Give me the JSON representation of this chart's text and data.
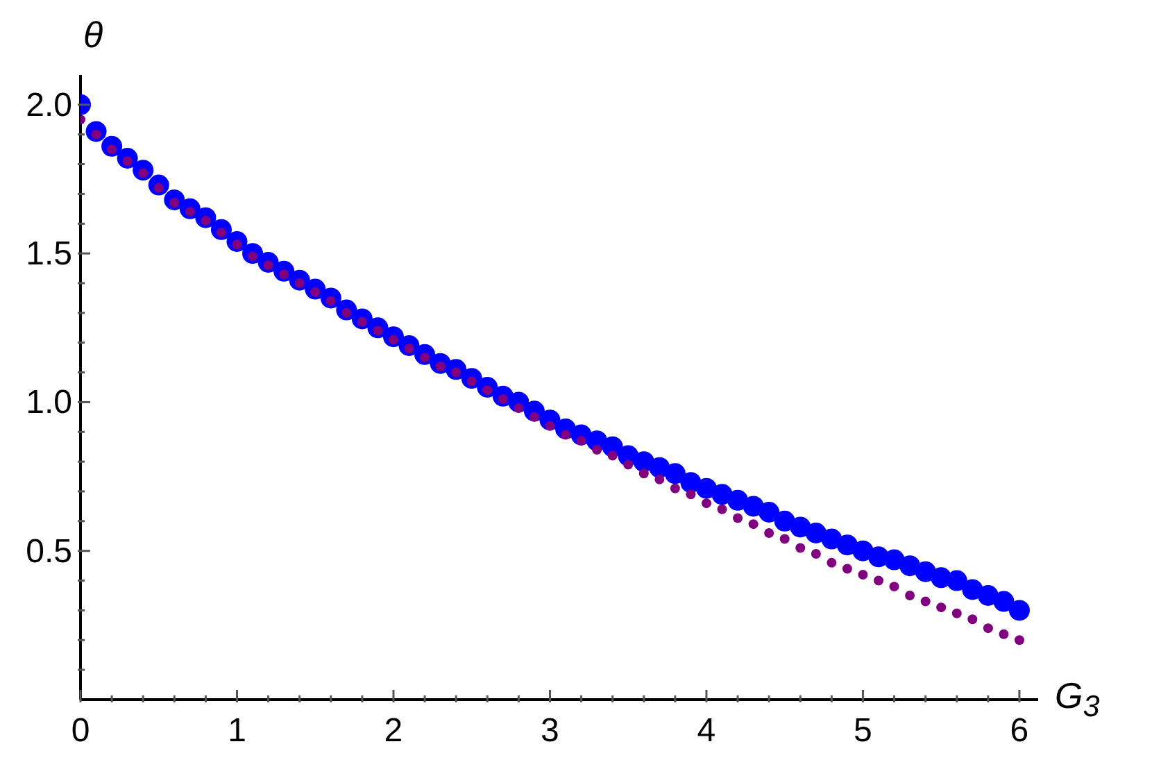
{
  "chart_data": {
    "type": "scatter",
    "xlabel": "G$_{3}$",
    "ylabel": "θ",
    "x": [
      0,
      0.1,
      0.2,
      0.3,
      0.4,
      0.5,
      0.6,
      0.7,
      0.8,
      0.9,
      1.0,
      1.1,
      1.2,
      1.3,
      1.4,
      1.5,
      1.6,
      1.7,
      1.8,
      1.9,
      2.0,
      2.1,
      2.2,
      2.3,
      2.4,
      2.5,
      2.6,
      2.7,
      2.8,
      2.9,
      3.0,
      3.1,
      3.2,
      3.3,
      3.4,
      3.5,
      3.6,
      3.7,
      3.8,
      3.9,
      4.0,
      4.1,
      4.2,
      4.3,
      4.4,
      4.5,
      4.6,
      4.7,
      4.8,
      4.9,
      5.0,
      5.1,
      5.2,
      5.3,
      5.4,
      5.5,
      5.6,
      5.7,
      5.8,
      5.9,
      6.0
    ],
    "series": [
      {
        "color": "#0000ff",
        "values": [
          2.0,
          1.91,
          1.86,
          1.82,
          1.78,
          1.73,
          1.68,
          1.65,
          1.62,
          1.58,
          1.54,
          1.5,
          1.47,
          1.44,
          1.41,
          1.38,
          1.35,
          1.31,
          1.28,
          1.25,
          1.22,
          1.19,
          1.16,
          1.13,
          1.11,
          1.08,
          1.05,
          1.02,
          1.0,
          0.97,
          0.94,
          0.91,
          0.89,
          0.87,
          0.85,
          0.82,
          0.8,
          0.78,
          0.76,
          0.73,
          0.71,
          0.69,
          0.67,
          0.65,
          0.63,
          0.6,
          0.58,
          0.56,
          0.54,
          0.52,
          0.5,
          0.48,
          0.47,
          0.45,
          0.43,
          0.41,
          0.4,
          0.37,
          0.35,
          0.33,
          0.3
        ]
      },
      {
        "color": "#800080",
        "values": [
          1.95,
          1.9,
          1.85,
          1.81,
          1.77,
          1.72,
          1.67,
          1.64,
          1.61,
          1.57,
          1.53,
          1.49,
          1.46,
          1.43,
          1.4,
          1.37,
          1.34,
          1.3,
          1.27,
          1.24,
          1.21,
          1.18,
          1.15,
          1.12,
          1.1,
          1.07,
          1.04,
          1.01,
          0.98,
          0.95,
          0.92,
          0.89,
          0.87,
          0.84,
          0.82,
          0.79,
          0.76,
          0.74,
          0.71,
          0.69,
          0.66,
          0.64,
          0.61,
          0.59,
          0.56,
          0.54,
          0.51,
          0.49,
          0.46,
          0.44,
          0.42,
          0.4,
          0.38,
          0.35,
          0.33,
          0.31,
          0.29,
          0.27,
          0.24,
          0.22,
          0.2
        ]
      }
    ],
    "xlim": [
      0,
      6.12
    ],
    "ylim": [
      0,
      2.1
    ],
    "xticks": [
      0,
      {
        "value": 0.2,
        "label": null
      },
      {
        "value": 0.4,
        "label": null
      },
      {
        "value": 0.6,
        "label": null
      },
      {
        "value": 0.8,
        "label": null
      },
      1,
      {
        "value": 1.2,
        "label": null
      },
      {
        "value": 1.4,
        "label": null
      },
      {
        "value": 1.6,
        "label": null
      },
      {
        "value": 1.8,
        "label": null
      },
      2,
      {
        "value": 2.2,
        "label": null
      },
      {
        "value": 2.4,
        "label": null
      },
      {
        "value": 2.6,
        "label": null
      },
      {
        "value": 2.8,
        "label": null
      },
      3,
      {
        "value": 3.2,
        "label": null
      },
      {
        "value": 3.4,
        "label": null
      },
      {
        "value": 3.6,
        "label": null
      },
      {
        "value": 3.8,
        "label": null
      },
      4,
      {
        "value": 4.2,
        "label": null
      },
      {
        "value": 4.4,
        "label": null
      },
      {
        "value": 4.6,
        "label": null
      },
      {
        "value": 4.8,
        "label": null
      },
      5,
      {
        "value": 5.2,
        "label": null
      },
      {
        "value": 5.4,
        "label": null
      },
      {
        "value": 5.6,
        "label": null
      },
      {
        "value": 5.8,
        "label": null
      },
      6
    ],
    "yticks": [
      {
        "value": 0.1,
        "label": null
      },
      {
        "value": 0.2,
        "label": null
      },
      {
        "value": 0.3,
        "label": null
      },
      {
        "value": 0.4,
        "label": null
      },
      {
        "value": 0.5,
        "label": "0.5"
      },
      {
        "value": 0.6,
        "label": null
      },
      {
        "value": 0.7,
        "label": null
      },
      {
        "value": 0.8,
        "label": null
      },
      {
        "value": 0.9,
        "label": null
      },
      {
        "value": 1.0,
        "label": "1.0"
      },
      {
        "value": 1.1,
        "label": null
      },
      {
        "value": 1.2,
        "label": null
      },
      {
        "value": 1.3,
        "label": null
      },
      {
        "value": 1.4,
        "label": null
      },
      {
        "value": 1.5,
        "label": "1.5"
      },
      {
        "value": 1.6,
        "label": null
      },
      {
        "value": 1.7,
        "label": null
      },
      {
        "value": 1.8,
        "label": null
      },
      {
        "value": 1.9,
        "label": null
      },
      {
        "value": 2.0,
        "label": "2.0"
      }
    ],
    "grid": false,
    "legend": false,
    "marker": "circle"
  }
}
